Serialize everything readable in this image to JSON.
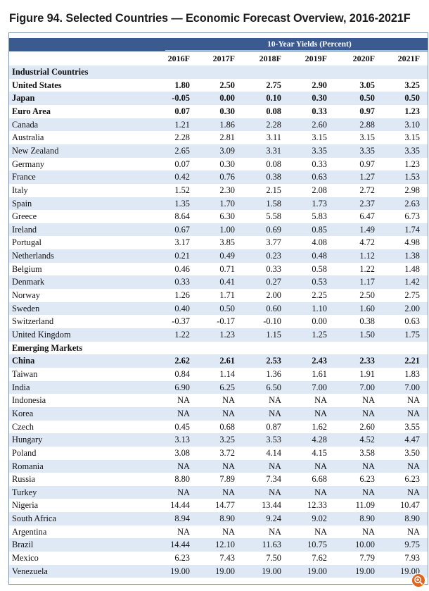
{
  "title": "Figure 94. Selected Countries — Economic Forecast Overview, 2016-2021F",
  "colors": {
    "header_bg": "#3a5a90",
    "row_shade": "#dfe9f5",
    "frame": "#7f96aa",
    "zoom_badge": "#e0651e"
  },
  "table": {
    "group_header": "10-Year Yields (Percent)",
    "columns": [
      "2016F",
      "2017F",
      "2018F",
      "2019F",
      "2020F",
      "2021F"
    ],
    "rows": [
      {
        "label": "Industrial Countries",
        "type": "section",
        "values": []
      },
      {
        "label": "United States",
        "type": "bold",
        "values": [
          "1.80",
          "2.50",
          "2.75",
          "2.90",
          "3.05",
          "3.25"
        ]
      },
      {
        "label": "Japan",
        "type": "bold",
        "values": [
          "-0.05",
          "0.00",
          "0.10",
          "0.30",
          "0.50",
          "0.50"
        ]
      },
      {
        "label": "Euro Area",
        "type": "bold",
        "values": [
          "0.07",
          "0.30",
          "0.08",
          "0.33",
          "0.97",
          "1.23"
        ]
      },
      {
        "label": "Canada",
        "type": "normal",
        "values": [
          "1.21",
          "1.86",
          "2.28",
          "2.60",
          "2.88",
          "3.10"
        ]
      },
      {
        "label": "Australia",
        "type": "normal",
        "values": [
          "2.28",
          "2.81",
          "3.11",
          "3.15",
          "3.15",
          "3.15"
        ]
      },
      {
        "label": "New Zealand",
        "type": "normal",
        "values": [
          "2.65",
          "3.09",
          "3.31",
          "3.35",
          "3.35",
          "3.35"
        ]
      },
      {
        "label": "Germany",
        "type": "normal",
        "values": [
          "0.07",
          "0.30",
          "0.08",
          "0.33",
          "0.97",
          "1.23"
        ]
      },
      {
        "label": "France",
        "type": "normal",
        "values": [
          "0.42",
          "0.76",
          "0.38",
          "0.63",
          "1.27",
          "1.53"
        ]
      },
      {
        "label": "Italy",
        "type": "normal",
        "values": [
          "1.52",
          "2.30",
          "2.15",
          "2.08",
          "2.72",
          "2.98"
        ]
      },
      {
        "label": "Spain",
        "type": "normal",
        "values": [
          "1.35",
          "1.70",
          "1.58",
          "1.73",
          "2.37",
          "2.63"
        ]
      },
      {
        "label": "Greece",
        "type": "normal",
        "values": [
          "8.64",
          "6.30",
          "5.58",
          "5.83",
          "6.47",
          "6.73"
        ]
      },
      {
        "label": "Ireland",
        "type": "normal",
        "values": [
          "0.67",
          "1.00",
          "0.69",
          "0.85",
          "1.49",
          "1.74"
        ]
      },
      {
        "label": "Portugal",
        "type": "normal",
        "values": [
          "3.17",
          "3.85",
          "3.77",
          "4.08",
          "4.72",
          "4.98"
        ]
      },
      {
        "label": "Netherlands",
        "type": "normal",
        "values": [
          "0.21",
          "0.49",
          "0.23",
          "0.48",
          "1.12",
          "1.38"
        ]
      },
      {
        "label": "Belgium",
        "type": "normal",
        "values": [
          "0.46",
          "0.71",
          "0.33",
          "0.58",
          "1.22",
          "1.48"
        ]
      },
      {
        "label": "Denmark",
        "type": "normal",
        "values": [
          "0.33",
          "0.41",
          "0.27",
          "0.53",
          "1.17",
          "1.42"
        ]
      },
      {
        "label": "Norway",
        "type": "normal",
        "values": [
          "1.26",
          "1.71",
          "2.00",
          "2.25",
          "2.50",
          "2.75"
        ]
      },
      {
        "label": "Sweden",
        "type": "normal",
        "values": [
          "0.40",
          "0.50",
          "0.60",
          "1.10",
          "1.60",
          "2.00"
        ]
      },
      {
        "label": "Switzerland",
        "type": "normal",
        "values": [
          "-0.37",
          "-0.17",
          "-0.10",
          "0.00",
          "0.38",
          "0.63"
        ]
      },
      {
        "label": "United Kingdom",
        "type": "normal",
        "values": [
          "1.22",
          "1.23",
          "1.15",
          "1.25",
          "1.50",
          "1.75"
        ]
      },
      {
        "label": "Emerging Markets",
        "type": "section",
        "values": []
      },
      {
        "label": "China",
        "type": "bold",
        "values": [
          "2.62",
          "2.61",
          "2.53",
          "2.43",
          "2.33",
          "2.21"
        ]
      },
      {
        "label": "Taiwan",
        "type": "normal",
        "values": [
          "0.84",
          "1.14",
          "1.36",
          "1.61",
          "1.91",
          "1.83"
        ]
      },
      {
        "label": "India",
        "type": "normal",
        "values": [
          "6.90",
          "6.25",
          "6.50",
          "7.00",
          "7.00",
          "7.00"
        ]
      },
      {
        "label": "Indonesia",
        "type": "normal",
        "values": [
          "NA",
          "NA",
          "NA",
          "NA",
          "NA",
          "NA"
        ]
      },
      {
        "label": "Korea",
        "type": "normal",
        "values": [
          "NA",
          "NA",
          "NA",
          "NA",
          "NA",
          "NA"
        ]
      },
      {
        "label": "Czech",
        "type": "normal",
        "values": [
          "0.45",
          "0.68",
          "0.87",
          "1.62",
          "2.60",
          "3.55"
        ]
      },
      {
        "label": "Hungary",
        "type": "normal",
        "values": [
          "3.13",
          "3.25",
          "3.53",
          "4.28",
          "4.52",
          "4.47"
        ]
      },
      {
        "label": "Poland",
        "type": "normal",
        "values": [
          "3.08",
          "3.72",
          "4.14",
          "4.15",
          "3.58",
          "3.50"
        ]
      },
      {
        "label": "Romania",
        "type": "normal",
        "values": [
          "NA",
          "NA",
          "NA",
          "NA",
          "NA",
          "NA"
        ]
      },
      {
        "label": "Russia",
        "type": "normal",
        "values": [
          "8.80",
          "7.89",
          "7.34",
          "6.68",
          "6.23",
          "6.23"
        ]
      },
      {
        "label": "Turkey",
        "type": "normal",
        "values": [
          "NA",
          "NA",
          "NA",
          "NA",
          "NA",
          "NA"
        ]
      },
      {
        "label": "Nigeria",
        "type": "normal",
        "values": [
          "14.44",
          "14.77",
          "13.44",
          "12.33",
          "11.09",
          "10.47"
        ]
      },
      {
        "label": "South Africa",
        "type": "normal",
        "values": [
          "8.94",
          "8.90",
          "9.24",
          "9.02",
          "8.90",
          "8.90"
        ]
      },
      {
        "label": "Argentina",
        "type": "normal",
        "values": [
          "NA",
          "NA",
          "NA",
          "NA",
          "NA",
          "NA"
        ]
      },
      {
        "label": "Brazil",
        "type": "normal",
        "values": [
          "14.44",
          "12.10",
          "11.63",
          "10.75",
          "10.00",
          "9.75"
        ]
      },
      {
        "label": "Mexico",
        "type": "normal",
        "values": [
          "6.23",
          "7.43",
          "7.50",
          "7.62",
          "7.79",
          "7.93"
        ]
      },
      {
        "label": "Venezuela",
        "type": "normal",
        "values": [
          "19.00",
          "19.00",
          "19.00",
          "19.00",
          "19.00",
          "19.00"
        ]
      }
    ]
  },
  "zoom_icon": "zoom-in-icon"
}
